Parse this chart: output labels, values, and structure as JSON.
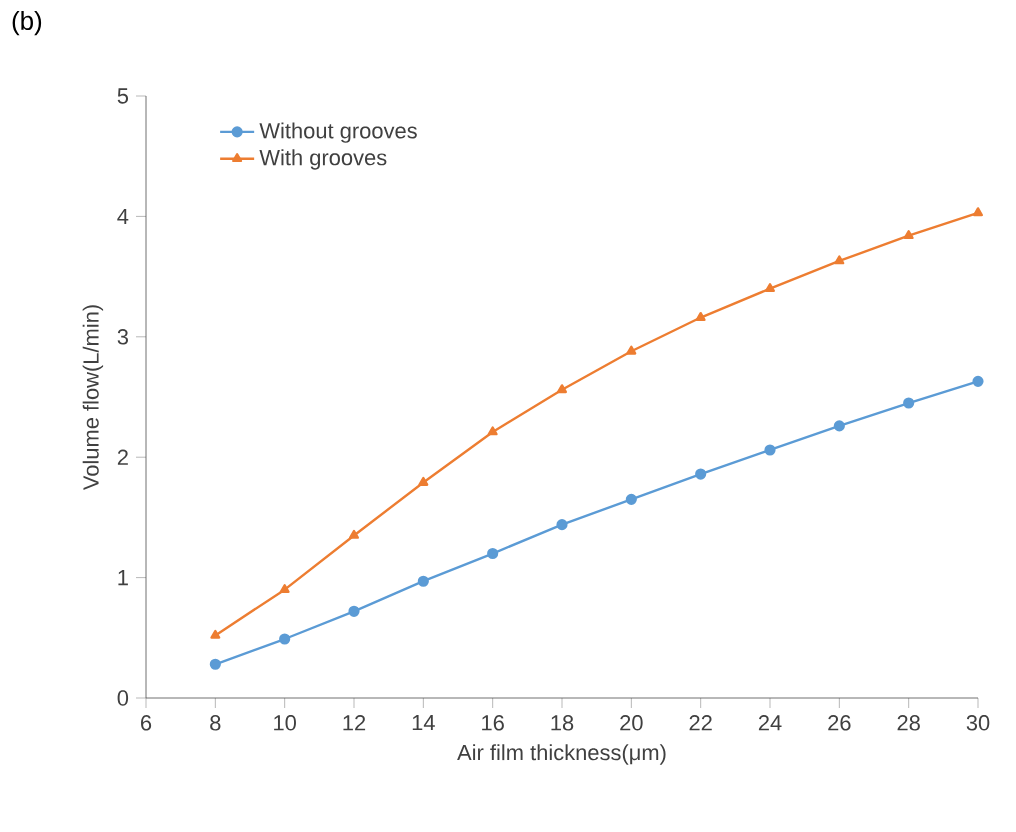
{
  "chart_data": {
    "type": "line",
    "title": "(b)",
    "xlabel": "Air film thickness(μm)",
    "ylabel": "Volume flow(L/min)",
    "x": [
      8,
      10,
      12,
      14,
      16,
      18,
      20,
      22,
      24,
      26,
      28,
      30
    ],
    "series": [
      {
        "name": "Without grooves",
        "color": "#5b9bd5",
        "marker": "circle",
        "values": [
          0.28,
          0.49,
          0.72,
          0.97,
          1.2,
          1.44,
          1.65,
          1.86,
          2.06,
          2.26,
          2.45,
          2.63
        ]
      },
      {
        "name": "With grooves",
        "color": "#ed7d31",
        "marker": "triangle",
        "values": [
          0.52,
          0.9,
          1.35,
          1.79,
          2.21,
          2.56,
          2.88,
          3.16,
          3.4,
          3.63,
          3.84,
          4.03
        ]
      }
    ],
    "xlim": [
      6,
      30
    ],
    "xticks": [
      6,
      8,
      10,
      12,
      14,
      16,
      18,
      20,
      22,
      24,
      26,
      28,
      30
    ],
    "ylim": [
      0,
      5
    ],
    "yticks": [
      0,
      1,
      2,
      3,
      4,
      5
    ],
    "grid": false,
    "legend": "top left"
  }
}
